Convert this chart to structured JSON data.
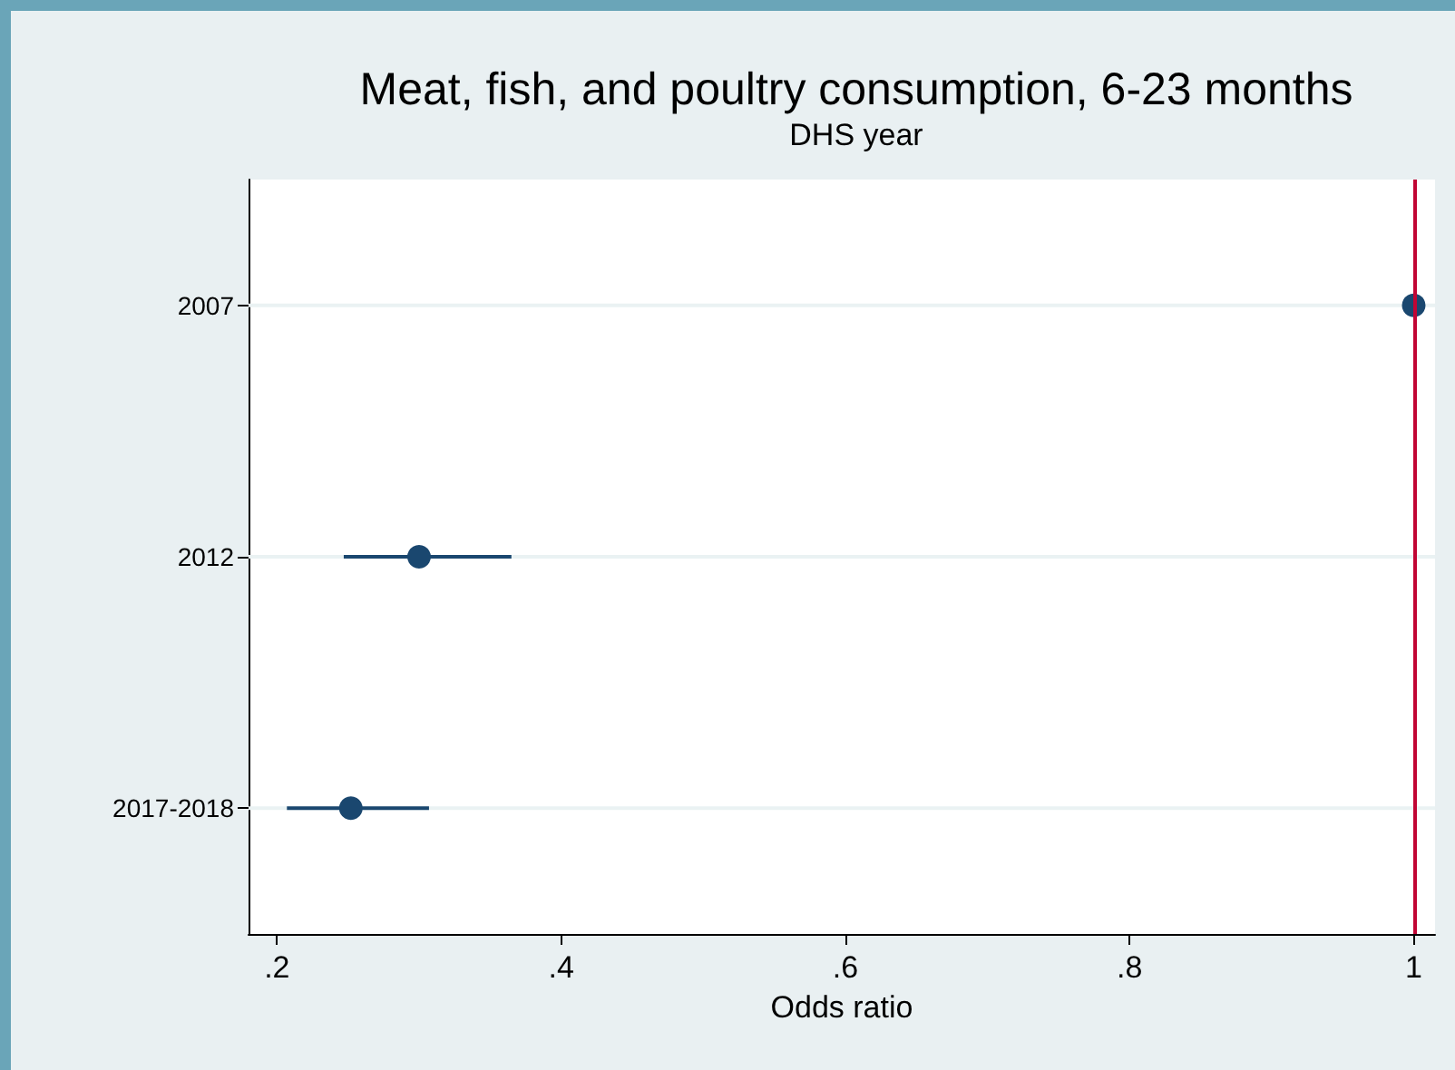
{
  "chart_data": {
    "type": "scatter",
    "title": "Meat, fish, and poultry consumption, 6-23 months",
    "ylabel": "DHS year",
    "xlabel": "Odds ratio",
    "orientation": "horizontal",
    "categories": [
      "2007",
      "2012",
      "2017-2018"
    ],
    "series": [
      {
        "color": "#1a476f",
        "values": [
          1,
          0.3,
          0.252
        ],
        "errors": [
          null,
          [
            0.247,
            0.365
          ],
          [
            0.207,
            0.307
          ]
        ]
      }
    ],
    "xlim": [
      0.18,
      1.015
    ],
    "xticks": [
      {
        "value": 0.2,
        "label": ".2"
      },
      {
        "value": 0.4,
        "label": ".4"
      },
      {
        "value": 0.6,
        "label": ".6"
      },
      {
        "value": 0.8,
        "label": ".8"
      },
      1
    ],
    "ref_lines": [
      {
        "axis": "x",
        "value": 1,
        "color": "#c10534"
      }
    ],
    "grid": "y",
    "marker": "circle"
  }
}
